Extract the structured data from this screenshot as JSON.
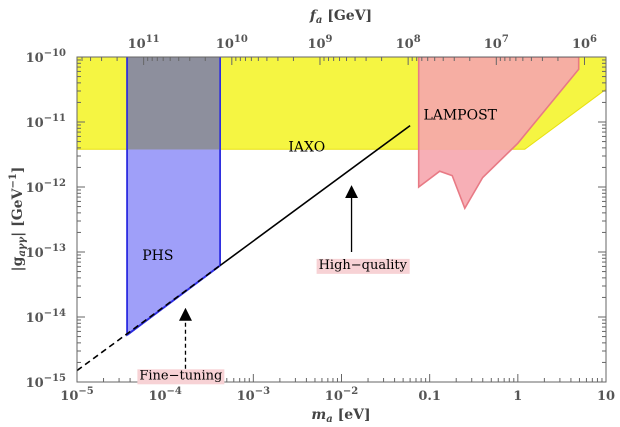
{
  "chart_data": {
    "type": "line",
    "x_scale": "log",
    "y_scale": "log",
    "xlabel_symbol": "m",
    "xlabel_sub": "a",
    "xlabel_unit": " [eV]",
    "xlim": [
      1e-05,
      10
    ],
    "top_axis_label_symbol": "f",
    "top_axis_label_sub": "a",
    "top_axis_label_unit": " [GeV]",
    "ylabel_prefix": "|g",
    "ylabel_sub": "aγγ",
    "ylabel_unit": "| [GeV",
    "ylabel_unit_exp": "−1",
    "ylabel_suffix": "]",
    "ylim": [
      1e-15,
      1e-10
    ],
    "x_ticks": [
      {
        "value": 1e-05,
        "base": "10",
        "exp": "−5"
      },
      {
        "value": 0.0001,
        "base": "10",
        "exp": "−4"
      },
      {
        "value": 0.001,
        "base": "10",
        "exp": "−3"
      },
      {
        "value": 0.01,
        "base": "10",
        "exp": "−2"
      },
      {
        "value": 0.1,
        "text": "0.1"
      },
      {
        "value": 1,
        "text": "1"
      },
      {
        "value": 10,
        "text": "10"
      }
    ],
    "y_ticks": [
      {
        "value": 1e-15,
        "base": "10",
        "exp": "−15"
      },
      {
        "value": 1e-14,
        "base": "10",
        "exp": "−14"
      },
      {
        "value": 1e-13,
        "base": "10",
        "exp": "−13"
      },
      {
        "value": 1e-12,
        "base": "10",
        "exp": "−12"
      },
      {
        "value": 1e-11,
        "base": "10",
        "exp": "−11"
      },
      {
        "value": 1e-10,
        "base": "10",
        "exp": "−10"
      }
    ],
    "top_ticks": [
      {
        "x": 5.7e-05,
        "base": "10",
        "exp": "11"
      },
      {
        "x": 0.00057,
        "base": "10",
        "exp": "10"
      },
      {
        "x": 0.0057,
        "base": "10",
        "exp": "9"
      },
      {
        "x": 0.057,
        "base": "10",
        "exp": "8"
      },
      {
        "x": 0.57,
        "base": "10",
        "exp": "7"
      },
      {
        "x": 5.7,
        "base": "10",
        "exp": "6"
      }
    ],
    "regions": [
      {
        "label": "IAXO",
        "fill": "#f5f542",
        "stroke": "#e8e010",
        "label_at": [
          0.0025,
          3.5e-12
        ],
        "points": [
          [
            1e-05,
            1e-10
          ],
          [
            10,
            1e-10
          ],
          [
            10,
            3.2e-11
          ],
          [
            1.2,
            3.8e-12
          ],
          [
            1e-05,
            3.8e-12
          ]
        ]
      },
      {
        "label": "LAMPOST",
        "fill": "#f6a6ae",
        "stroke": "#e87a85",
        "label_at": [
          0.085,
          1.1e-11
        ],
        "points": [
          [
            0.075,
            1e-10
          ],
          [
            4.9,
            1e-10
          ],
          [
            4.9,
            6.5e-11
          ],
          [
            1.0,
            4.7e-12
          ],
          [
            0.4,
            1.4e-12
          ],
          [
            0.25,
            4.7e-13
          ],
          [
            0.18,
            1.5e-12
          ],
          [
            0.13,
            1.75e-12
          ],
          [
            0.09,
            1.2e-12
          ],
          [
            0.075,
            1e-12
          ]
        ]
      },
      {
        "label": "PHS",
        "fill": "#8a8af8",
        "stroke": "#2c2ce0",
        "label_at": [
          5.5e-05,
          7.5e-14
        ],
        "points": [
          [
            3.7e-05,
            1e-10
          ],
          [
            0.00042,
            1e-10
          ],
          [
            0.00042,
            6.2e-14
          ],
          [
            3.7e-05,
            5.3e-15
          ]
        ]
      }
    ],
    "line_series": [
      {
        "style": "solid",
        "color": "#000000",
        "points": [
          [
            0.00042,
            6.2e-14
          ],
          [
            0.06,
            8.8e-12
          ]
        ]
      },
      {
        "style": "dashed",
        "color": "#000000",
        "points": [
          [
            1e-05,
            1.5e-15
          ],
          [
            0.00042,
            6.2e-14
          ]
        ]
      }
    ],
    "annotations": [
      {
        "text": "High−quality",
        "at": [
          0.0055,
          5.5e-14
        ],
        "arrow_from": [
          0.013,
          1e-13
        ],
        "arrow_to": [
          0.013,
          8.5e-13
        ]
      },
      {
        "text": "Fine−tuning",
        "at": [
          5.1e-05,
          1.1e-15
        ],
        "arrow_from": [
          0.00017,
          1.6e-15
        ],
        "arrow_to": [
          0.00017,
          1.1e-14
        ]
      }
    ]
  }
}
